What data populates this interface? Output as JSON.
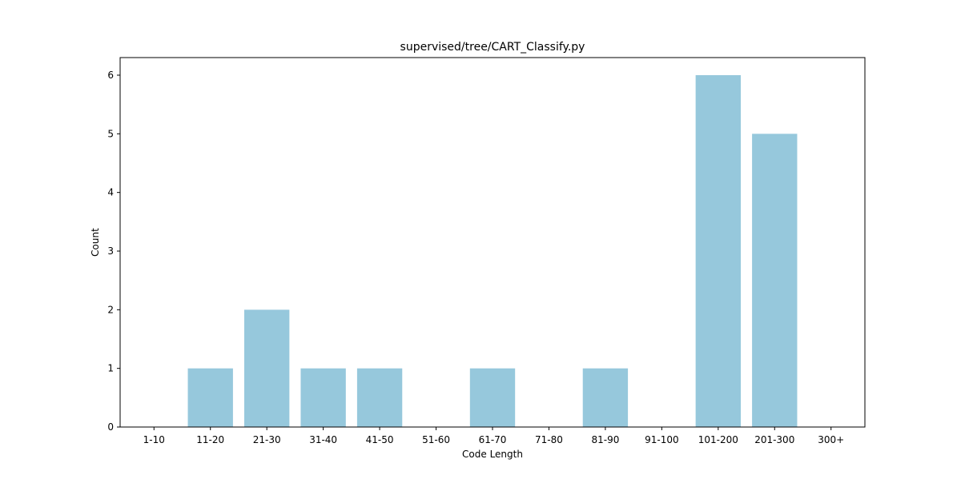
{
  "chart_data": {
    "type": "bar",
    "title": "supervised/tree/CART_Classify.py",
    "xlabel": "Code Length",
    "ylabel": "Count",
    "categories": [
      "1-10",
      "11-20",
      "21-30",
      "31-40",
      "41-50",
      "51-60",
      "61-70",
      "71-80",
      "81-90",
      "91-100",
      "101-200",
      "201-300",
      "300+"
    ],
    "values": [
      0,
      1,
      2,
      1,
      1,
      0,
      1,
      0,
      1,
      0,
      6,
      5,
      0
    ],
    "ylim": [
      0,
      6.3
    ],
    "yticks": [
      0,
      1,
      2,
      3,
      4,
      5,
      6
    ],
    "bar_color": "#96c8dc",
    "grid": false,
    "legend": "none"
  }
}
